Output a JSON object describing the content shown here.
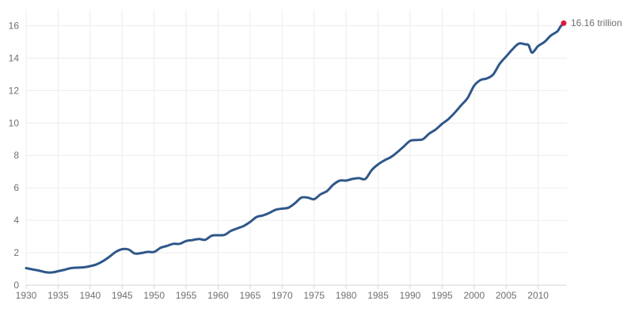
{
  "chart_data": {
    "type": "line",
    "title": "",
    "xlabel": "",
    "ylabel": "",
    "xlim": [
      1930,
      2014.5
    ],
    "ylim": [
      0,
      17
    ],
    "grid": true,
    "x_ticks": [
      1930,
      1935,
      1940,
      1945,
      1950,
      1955,
      1960,
      1965,
      1970,
      1975,
      1980,
      1985,
      1990,
      1995,
      2000,
      2005,
      2010
    ],
    "x_tick_labels": [
      "1930",
      "1935",
      "1940",
      "1945",
      "1950",
      "1955",
      "1960",
      "1965",
      "1970",
      "1975",
      "1980",
      "1985",
      "1990",
      "1995",
      "2000",
      "2005",
      "2010"
    ],
    "y_ticks": [
      0,
      2,
      4,
      6,
      8,
      10,
      12,
      14,
      16
    ],
    "y_tick_labels": [
      "0",
      "2",
      "4",
      "6",
      "8",
      "10",
      "12",
      "14",
      "16"
    ],
    "line_color": "#2f578a",
    "end_marker_color": "#e4173e",
    "end_label": "16.16 trillion",
    "series": [
      {
        "x": [
          1930,
          1931,
          1932,
          1933,
          1934,
          1935,
          1936,
          1937,
          1938,
          1939,
          1940,
          1941,
          1942,
          1943,
          1944,
          1945,
          1946,
          1947,
          1948,
          1949,
          1950,
          1951,
          1952,
          1953,
          1954,
          1955,
          1956,
          1957,
          1958,
          1959,
          1960,
          1961,
          1962,
          1963,
          1964,
          1965,
          1966,
          1967,
          1968,
          1969,
          1970,
          1971,
          1972,
          1973,
          1974,
          1975,
          1976,
          1977,
          1978,
          1979,
          1980,
          1981,
          1982,
          1983,
          1984,
          1985,
          1986,
          1987,
          1988,
          1989,
          1990,
          1991,
          1992,
          1993,
          1994,
          1995,
          1996,
          1997,
          1998,
          1999,
          2000,
          2001,
          2002,
          2003,
          2004,
          2005,
          2006,
          2007,
          2008,
          2008.5,
          2009,
          2009.5,
          2010,
          2011,
          2012,
          2013,
          2013.5,
          2014
        ],
        "values": [
          1.05,
          0.97,
          0.9,
          0.8,
          0.78,
          0.86,
          0.95,
          1.05,
          1.08,
          1.1,
          1.17,
          1.28,
          1.48,
          1.75,
          2.05,
          2.22,
          2.2,
          1.95,
          1.98,
          2.05,
          2.05,
          2.3,
          2.42,
          2.55,
          2.55,
          2.72,
          2.78,
          2.85,
          2.8,
          3.05,
          3.08,
          3.1,
          3.35,
          3.5,
          3.65,
          3.9,
          4.2,
          4.3,
          4.45,
          4.65,
          4.72,
          4.78,
          5.05,
          5.4,
          5.4,
          5.3,
          5.6,
          5.8,
          6.2,
          6.45,
          6.45,
          6.55,
          6.6,
          6.55,
          7.1,
          7.45,
          7.7,
          7.9,
          8.2,
          8.55,
          8.9,
          8.95,
          9.0,
          9.35,
          9.6,
          9.95,
          10.25,
          10.65,
          11.1,
          11.55,
          12.3,
          12.65,
          12.75,
          13.0,
          13.65,
          14.1,
          14.55,
          14.9,
          14.85,
          14.8,
          14.35,
          14.5,
          14.75,
          15.0,
          15.4,
          15.65,
          15.95,
          16.16
        ]
      }
    ]
  }
}
